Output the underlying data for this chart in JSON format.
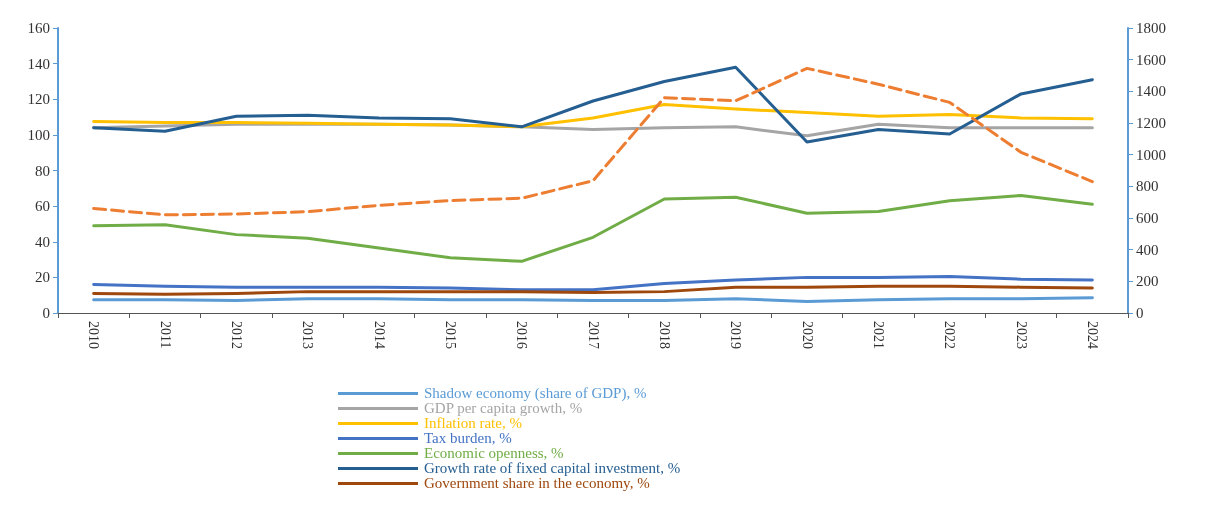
{
  "chart_data": {
    "type": "line",
    "categories": [
      "2010",
      "2011",
      "2012",
      "2013",
      "2014",
      "2015",
      "2016",
      "2017",
      "2018",
      "2019",
      "2020",
      "2021",
      "2022",
      "2023",
      "2024"
    ],
    "ylim": [
      0,
      160
    ],
    "yticks": [
      0,
      20,
      40,
      60,
      80,
      100,
      120,
      140,
      160
    ],
    "y2lim": [
      0,
      1800
    ],
    "y2ticks": [
      0,
      200,
      400,
      600,
      800,
      1000,
      1200,
      1400,
      1600,
      1800
    ],
    "grid": false,
    "legend": "bottom",
    "marker": "none",
    "series": [
      {
        "name": "Shadow economy (share of GDP), %",
        "color": "#5b9bd5",
        "values": [
          7.5,
          7.5,
          7,
          8,
          8,
          7.5,
          7.5,
          7,
          7,
          8,
          6.5,
          7.5,
          8,
          8,
          8.5
        ]
      },
      {
        "name": "GDP per capita growth, %",
        "color": "#a5a5a5",
        "values": [
          104,
          105,
          106,
          106,
          106,
          105.5,
          104.5,
          103,
          104,
          104.5,
          99.5,
          106,
          104,
          104,
          104
        ]
      },
      {
        "name": "Inflation rate, %",
        "color": "#ffc000",
        "values": [
          107.5,
          107,
          107,
          106.5,
          106,
          105.5,
          104.5,
          109.5,
          117,
          114.5,
          112.5,
          110.5,
          111.5,
          109.5,
          109
        ]
      },
      {
        "name": "Tax burden, %",
        "color": "#4472c4",
        "values": [
          16,
          15,
          14.5,
          14.5,
          14.5,
          14,
          13,
          13,
          16.5,
          18.5,
          20,
          20,
          20.5,
          19,
          18.5
        ]
      },
      {
        "name": "Economic openness, %",
        "color": "#70ad47",
        "values": [
          49,
          49.5,
          44,
          42,
          36.5,
          31,
          29,
          42.5,
          64,
          65,
          56,
          57,
          63,
          66,
          61
        ]
      },
      {
        "name": "Growth rate of fixed capital investment, %",
        "color": "#255e91",
        "values": [
          104,
          102,
          110.5,
          111,
          109.5,
          109,
          104.5,
          119,
          130,
          138,
          96,
          103,
          100.5,
          123,
          131
        ]
      },
      {
        "name": "Government share in the economy, %",
        "color": "#9e480e",
        "values": [
          11,
          10.5,
          11,
          12,
          12,
          12,
          12,
          11.5,
          12,
          14.5,
          14.5,
          15,
          15,
          14.5,
          14
        ]
      },
      {
        "color": "#ed7d31",
        "axis": "y2",
        "line_style": "dashed",
        "values": [
          660,
          620,
          625,
          640,
          680,
          710,
          725,
          835,
          1360,
          1340,
          1545,
          1445,
          1330,
          1015,
          830
        ]
      }
    ]
  }
}
